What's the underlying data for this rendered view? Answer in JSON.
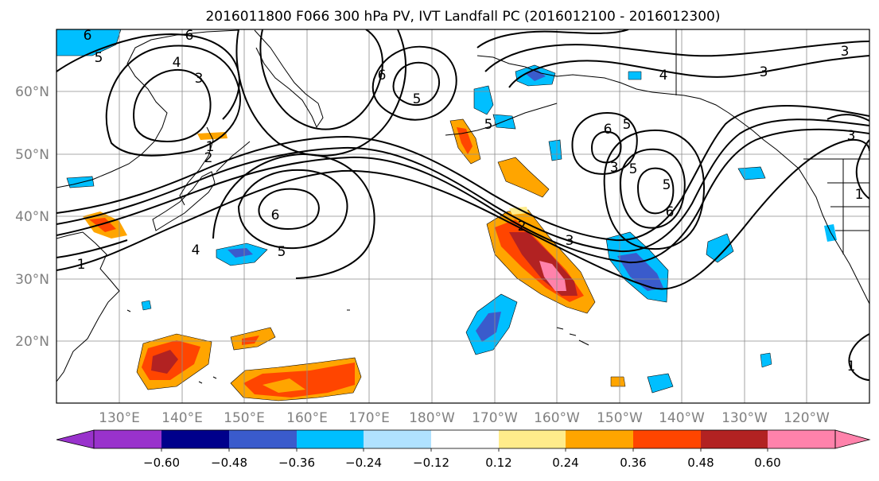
{
  "title": "2016011800 F066 300 hPa PV, IVT Landfall PC (2016012100 - 2016012300)",
  "lat_labels": [
    "60°N",
    "50°N",
    "40°N",
    "30°N",
    "20°N"
  ],
  "lon_labels": [
    "130°E",
    "140°E",
    "150°E",
    "160°E",
    "170°E",
    "180°W",
    "170°W",
    "160°W",
    "150°W",
    "140°W",
    "130°W",
    "120°W"
  ],
  "map_extent": {
    "lon_min": 120,
    "lon_max": 250,
    "lat_min": 10,
    "lat_max": 70
  },
  "colorbar": {
    "tick_labels": [
      "−0.60",
      "−0.48",
      "−0.36",
      "−0.24",
      "−0.12",
      "0.12",
      "0.24",
      "0.36",
      "0.48",
      "0.60"
    ],
    "colors": [
      "#9932cc",
      "#00008b",
      "#3a5bcc",
      "#00bfff",
      "#b0e2ff",
      "#ffffff",
      "#ffec8b",
      "#ffa500",
      "#ff4500",
      "#b22222",
      "#ff82ab"
    ]
  },
  "contour_labels": [
    "6",
    "6",
    "5",
    "4",
    "3",
    "1",
    "2",
    "6",
    "5",
    "6",
    "5",
    "5",
    "4",
    "3",
    "6",
    "5",
    "5",
    "6",
    "2",
    "3",
    "5",
    "4",
    "1",
    "3",
    "3",
    "3",
    "1",
    "1"
  ]
}
